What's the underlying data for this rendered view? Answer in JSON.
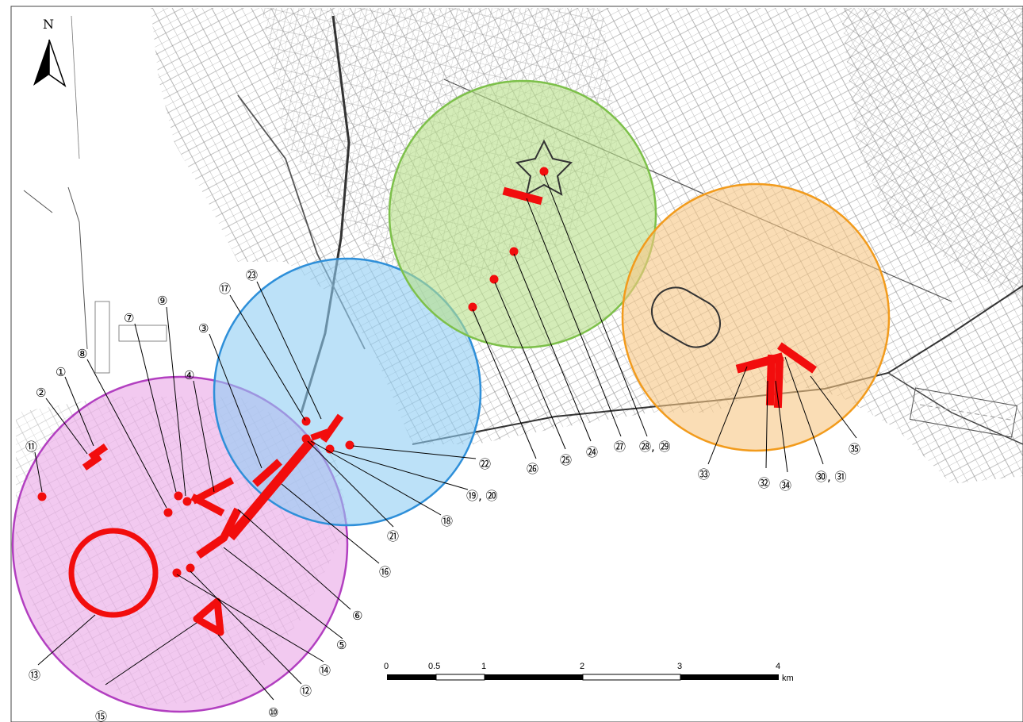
{
  "north_arrow": {
    "label": "N"
  },
  "scale_bar": {
    "ticks": [
      "0",
      "0.5",
      "1",
      "2",
      "3",
      "4"
    ],
    "unit": "km"
  },
  "zones": [
    {
      "name": "pink-zone",
      "fill": "#e9a5e6",
      "stroke": "#b23fc0"
    },
    {
      "name": "blue-zone",
      "fill": "#8fcdf4",
      "stroke": "#2e8fd9"
    },
    {
      "name": "green-zone",
      "fill": "#b7df88",
      "stroke": "#7dc04a"
    },
    {
      "name": "orange-zone",
      "fill": "#f7c683",
      "stroke": "#f29b1c"
    }
  ],
  "marker_color": "#f20d0d",
  "labels": {
    "l1": "①",
    "l2": "②",
    "l3": "③",
    "l4": "④",
    "l5": "⑤",
    "l6": "⑥",
    "l7": "⑦",
    "l8": "⑧",
    "l9": "⑨",
    "l10": "⑩",
    "l11": "⑪",
    "l12": "⑫",
    "l13": "⑬",
    "l14": "⑭",
    "l15": "⑮",
    "l16": "⑯",
    "l17": "⑰",
    "l18": "⑱",
    "l19_20": "⑲, ⑳",
    "l21": "㉑",
    "l22": "㉒",
    "l23": "㉓",
    "l24": "㉔",
    "l25": "㉕",
    "l26": "㉖",
    "l27": "㉗",
    "l28_29": "㉘, ㉙",
    "l30_31": "㉚, ㉛",
    "l32": "㉜",
    "l33": "㉝",
    "l34": "㉞",
    "l35": "㉟"
  }
}
